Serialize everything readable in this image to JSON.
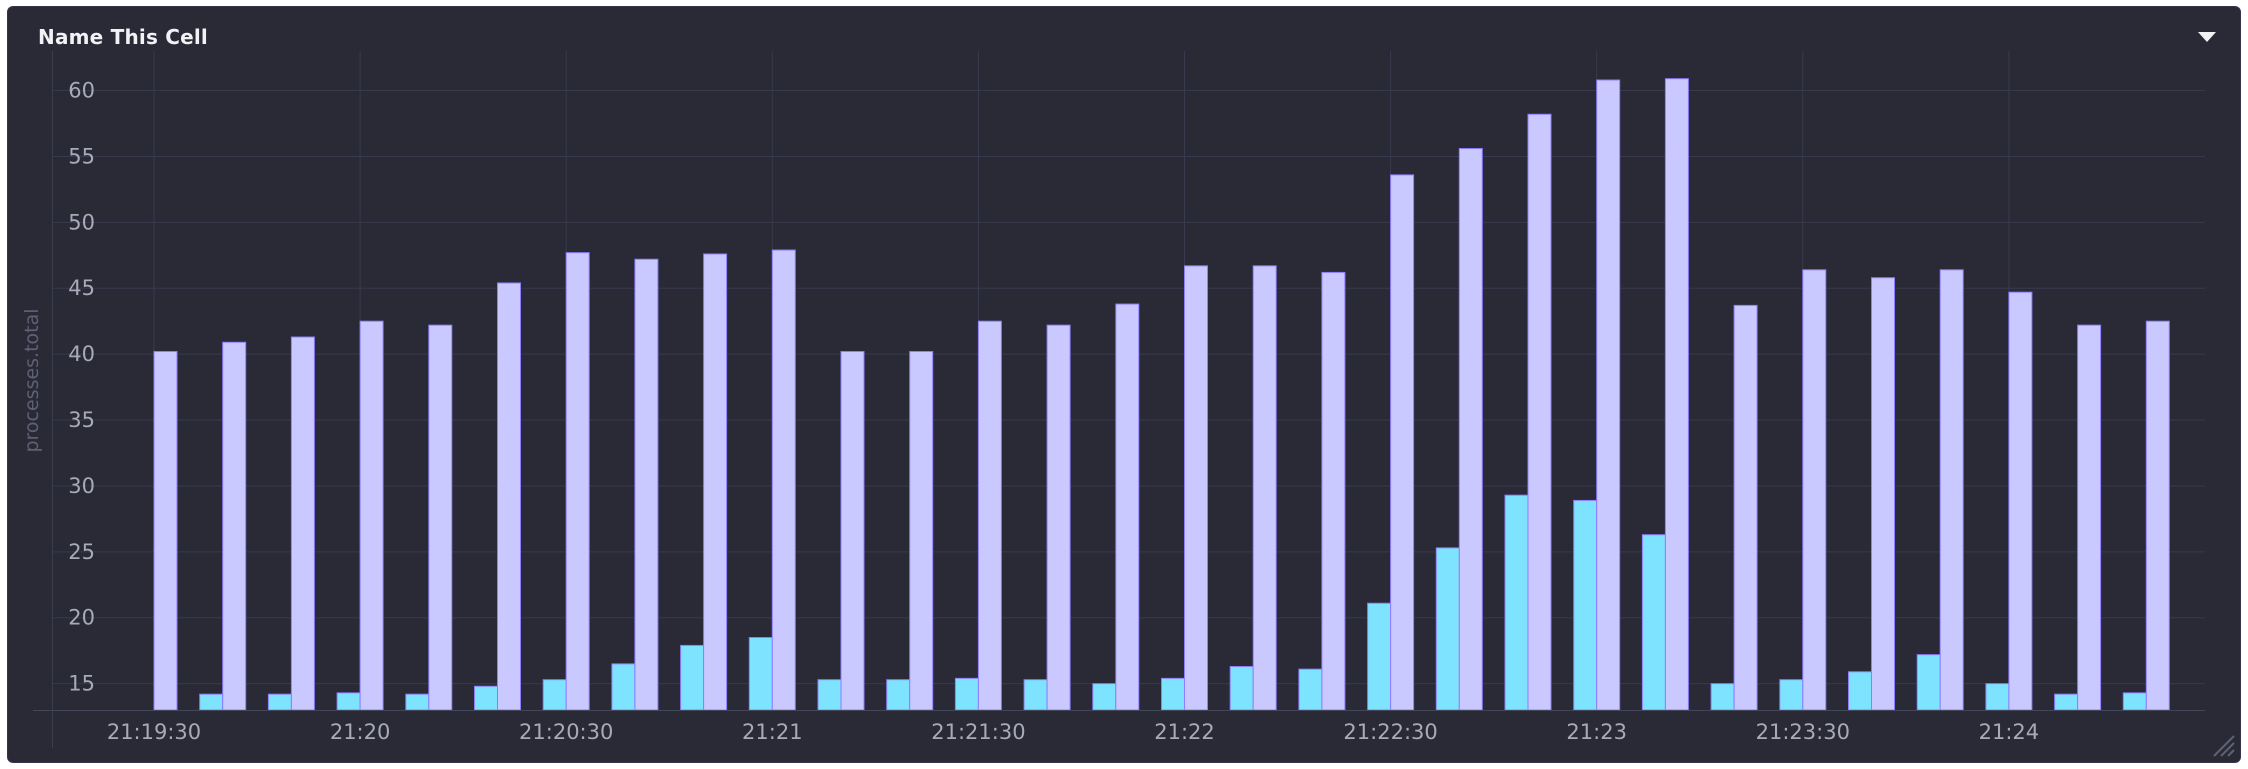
{
  "cell": {
    "title": "Name This Cell",
    "menu_icon": "caret-down-icon",
    "resize_icon": "resize-grip-icon"
  },
  "colors": {
    "background": "#292a36",
    "grid": "#383a4e",
    "series_1": "#7de3ff",
    "series_2": "#c9c8ff",
    "bar_edge": "#8e7dff"
  },
  "chart_data": {
    "type": "bar",
    "ylabel": "processes.total",
    "xlabel": "",
    "ylim": [
      13,
      63
    ],
    "yticks": [
      15,
      20,
      25,
      30,
      35,
      40,
      45,
      50,
      55,
      60
    ],
    "x": [
      "21:19:30",
      "21:19:40",
      "21:19:50",
      "21:20:00",
      "21:20:10",
      "21:20:20",
      "21:20:30",
      "21:20:40",
      "21:20:50",
      "21:21:00",
      "21:21:10",
      "21:21:20",
      "21:21:30",
      "21:21:40",
      "21:21:50",
      "21:22:00",
      "21:22:10",
      "21:22:20",
      "21:22:30",
      "21:22:40",
      "21:22:50",
      "21:23:00",
      "21:23:10",
      "21:23:20",
      "21:23:30",
      "21:23:40",
      "21:23:50",
      "21:24:00",
      "21:24:10",
      "21:24:20"
    ],
    "xticks": [
      "21:19:30",
      "21:20",
      "21:20:30",
      "21:21",
      "21:21:30",
      "21:22",
      "21:22:30",
      "21:23",
      "21:23:30",
      "21:24"
    ],
    "series": [
      {
        "values": [
          11.5,
          14.2,
          14.2,
          14.3,
          14.2,
          14.8,
          15.3,
          16.5,
          17.9,
          18.5,
          15.3,
          15.3,
          15.4,
          15.3,
          15.0,
          15.4,
          16.3,
          16.1,
          21.1,
          25.3,
          29.3,
          28.9,
          26.3,
          15.0,
          15.3,
          15.9,
          17.2,
          15.0,
          14.2,
          14.3
        ]
      },
      {
        "values": [
          40.2,
          40.9,
          41.3,
          42.5,
          42.2,
          45.4,
          47.7,
          47.2,
          47.6,
          47.9,
          40.2,
          40.2,
          42.5,
          42.2,
          43.8,
          46.7,
          46.7,
          46.2,
          53.6,
          55.6,
          58.2,
          60.8,
          60.9,
          43.7,
          46.4,
          45.8,
          46.4,
          44.7,
          42.2,
          42.5
        ]
      }
    ]
  }
}
